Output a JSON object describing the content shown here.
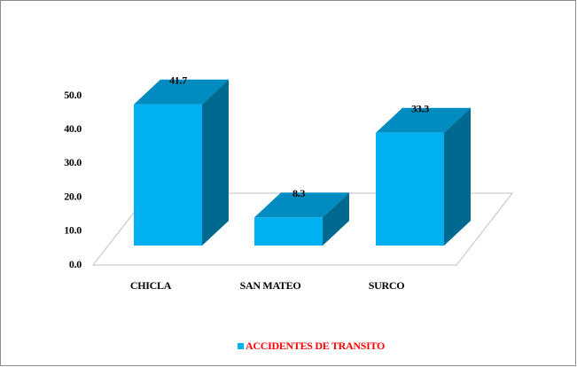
{
  "chart_data": {
    "type": "bar3d",
    "categories": [
      "CHICLA",
      "SAN MATEO",
      "SURCO"
    ],
    "series": [
      {
        "name": "ACCIDENTES DE TRANSITO",
        "color": "#00b0f0",
        "values": [
          41.7,
          8.3,
          33.3
        ]
      }
    ],
    "ylim": [
      0,
      50
    ],
    "yticks": [
      {
        "value": 0,
        "label": "0.0"
      },
      {
        "value": 10,
        "label": "10.0"
      },
      {
        "value": 20,
        "label": "20.0"
      },
      {
        "value": 30,
        "label": "30.0"
      },
      {
        "value": 40,
        "label": "40.0"
      },
      {
        "value": 50,
        "label": "50.0"
      }
    ],
    "legend_text_color": "#ff0000",
    "legend": "bottom"
  }
}
